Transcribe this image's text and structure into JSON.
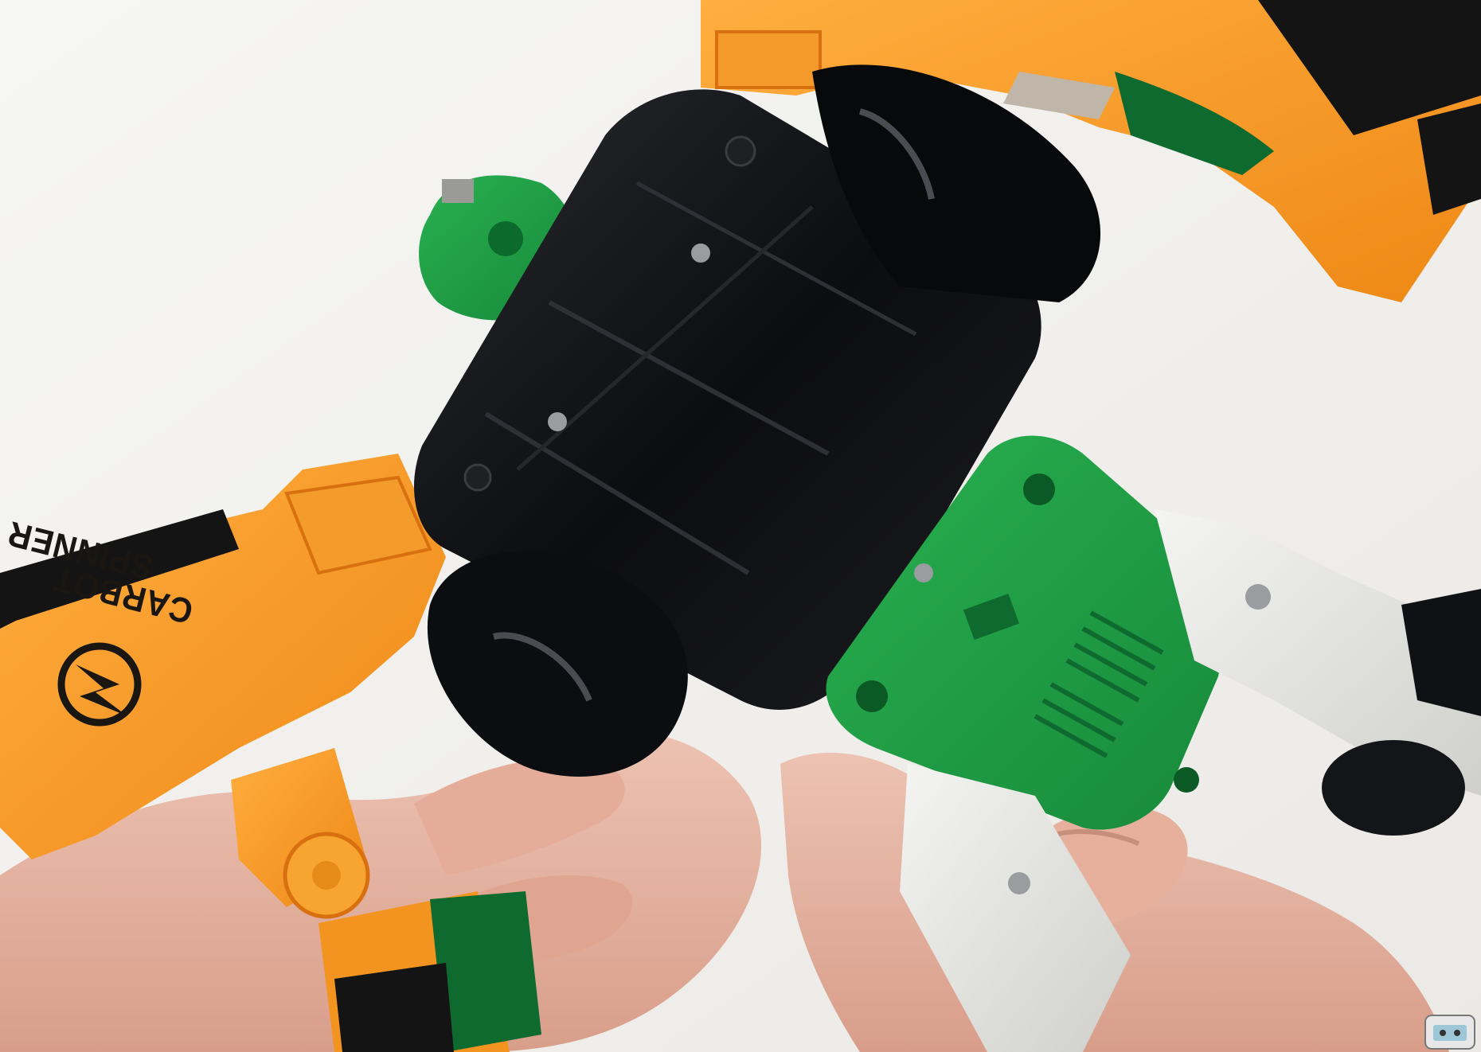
{
  "photo": {
    "subject": "",
    "printed_label": {
      "line1": "SPINNER",
      "line2": "CARBOT"
    }
  },
  "colors": {
    "background": "#f3f2ef",
    "orange": "#f7931e",
    "orange_dark": "#d8700f",
    "black_plastic": "#101114",
    "green_plastic": "#1f9a44",
    "dark_green": "#0e5a2a",
    "white_plastic": "#e6e6e3",
    "skin": "#e8b8a6"
  },
  "icons": {
    "logo": "lightning-bolt-logo-icon",
    "badge": "channel-badge-icon"
  }
}
